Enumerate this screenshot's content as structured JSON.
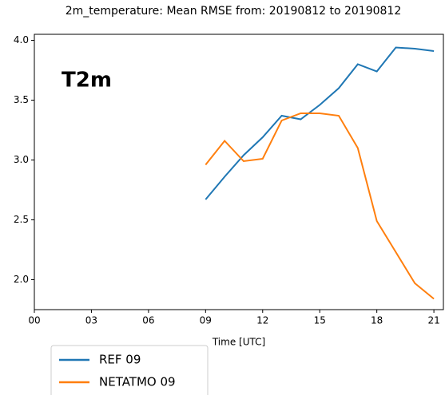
{
  "chart_data": {
    "type": "line",
    "title": "2m_temperature: Mean RMSE from: 20190812 to 20190812",
    "annotation": "T2m",
    "xlabel": "Time [UTC]",
    "x": [
      9,
      10,
      11,
      12,
      13,
      14,
      15,
      16,
      17,
      18,
      19,
      20,
      21
    ],
    "series": [
      {
        "name": "REF 09",
        "color": "#1f77b4",
        "values": [
          2.67,
          2.86,
          3.04,
          3.19,
          3.37,
          3.34,
          3.46,
          3.6,
          3.8,
          3.74,
          3.94,
          3.93,
          3.91
        ]
      },
      {
        "name": "NETATMO 09",
        "color": "#ff7f0e",
        "values": [
          2.96,
          3.16,
          2.99,
          3.01,
          3.33,
          3.39,
          3.39,
          3.37,
          3.1,
          2.49,
          2.23,
          1.97,
          1.84
        ]
      }
    ],
    "xlim": [
      0,
      21.5
    ],
    "xticks": [
      {
        "value": 0,
        "label": "00"
      },
      {
        "value": 3,
        "label": "03"
      },
      {
        "value": 6,
        "label": "06"
      },
      {
        "value": 9,
        "label": "09"
      },
      12,
      15,
      18,
      21
    ],
    "ylim": [
      1.75,
      4.05
    ],
    "yticks": [
      {
        "value": 2,
        "label": "2.0"
      },
      2.5,
      {
        "value": 3,
        "label": "3.0"
      },
      3.5,
      {
        "value": 4,
        "label": "4.0"
      }
    ],
    "grid": false,
    "legend": "below-left"
  }
}
